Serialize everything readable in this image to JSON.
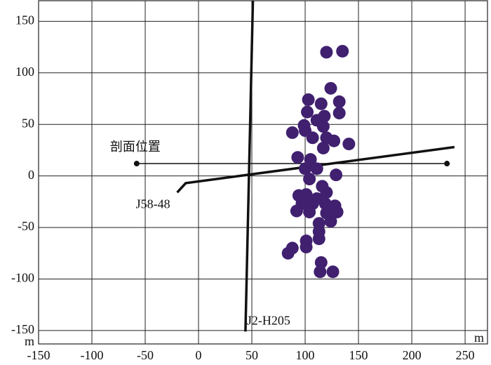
{
  "chart_data": {
    "type": "scatter",
    "x_unit": "m",
    "y_unit": "m",
    "xlim": [
      -150,
      271
    ],
    "ylim": [
      -163,
      170
    ],
    "xticks": [
      -150,
      -100,
      -50,
      0,
      50,
      100,
      150,
      200,
      250
    ],
    "yticks": [
      -150,
      -100,
      -50,
      0,
      50,
      100,
      150
    ],
    "grid": true,
    "series": [
      {
        "color": "#40206f",
        "x": [
          120,
          135,
          124,
          103,
          115,
          132,
          102,
          118,
          132,
          88,
          99,
          111,
          100,
          117,
          107,
          120,
          127,
          141,
          117,
          93,
          105,
          100,
          111,
          129,
          104,
          116,
          94,
          101,
          111,
          120,
          97,
          107,
          119,
          128,
          92,
          104,
          120,
          130,
          113,
          124,
          113,
          101,
          113,
          101,
          88,
          84,
          115,
          114,
          126
        ],
        "y": [
          120,
          121,
          85,
          74,
          70,
          72,
          62,
          58,
          61,
          42,
          49,
          54,
          44,
          48,
          37,
          37,
          34,
          31,
          27,
          18,
          16,
          7,
          7,
          1,
          -3,
          -10,
          -19,
          -18,
          -22,
          -16,
          -27,
          -27,
          -27,
          -29,
          -34,
          -35,
          -36,
          -35,
          -46,
          -44,
          -54,
          -63,
          -61,
          -69,
          -70,
          -75,
          -84,
          -93,
          -93
        ]
      }
    ],
    "lines": [
      {
        "label": "J2-H205",
        "color": "#111111",
        "x": [
          51,
          44
        ],
        "y": [
          170,
          -151
        ]
      },
      {
        "label": "J58-48",
        "color": "#111111",
        "x": [
          -20,
          -12,
          240
        ],
        "y": [
          -16,
          -7,
          28
        ]
      },
      {
        "label": "剖面位置",
        "color": "#111111",
        "markers": true,
        "x": [
          -58,
          233
        ],
        "y": [
          12,
          12
        ]
      }
    ]
  }
}
